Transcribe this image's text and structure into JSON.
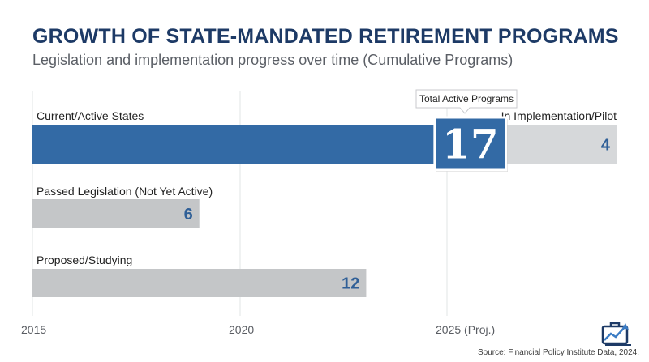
{
  "header": {
    "title": "GROWTH OF STATE-MANDATED RETIREMENT PROGRAMS",
    "subtitle": "Legislation and implementation progress over time (Cumulative Programs)"
  },
  "chart_data": {
    "type": "bar",
    "orientation": "horizontal",
    "title": "GROWTH OF STATE-MANDATED RETIREMENT PROGRAMS",
    "subtitle": "Legislation and implementation progress over time (Cumulative Programs)",
    "xlabel": "",
    "ylabel": "",
    "x_ticks": [
      "2015",
      "2020",
      "2025 (Proj.)"
    ],
    "grid": "vertical",
    "rows": [
      {
        "label": "Current/Active States",
        "segments": [
          {
            "name": "Current/Active States",
            "value": 17,
            "value_label": "17",
            "color": "#336aa5"
          },
          {
            "name": "In Implementation/Pilot",
            "value": 4,
            "value_label": "4",
            "color": "#d6d8da"
          }
        ]
      },
      {
        "label": "Passed Legislation (Not Yet Active)",
        "segments": [
          {
            "name": "Passed Legislation (Not Yet Active)",
            "value": 6,
            "value_label": "6",
            "color": "#c4c6c8"
          }
        ]
      },
      {
        "label": "Proposed/Studying",
        "segments": [
          {
            "name": "Proposed/Studying",
            "value": 12,
            "value_label": "12",
            "color": "#c4c6c8"
          }
        ]
      }
    ],
    "annotation": {
      "text": "Total Active Programs",
      "target": "Current/Active States"
    },
    "colors": {
      "accent": "#336aa5",
      "value_text": "#2f5f97",
      "grid": "#e2e4e6",
      "axis_text": "#5a5d63"
    }
  },
  "footer": {
    "source": "Source: Financial Policy Institute Data, 2024.",
    "logo_icon": "briefcase-trend-icon"
  }
}
